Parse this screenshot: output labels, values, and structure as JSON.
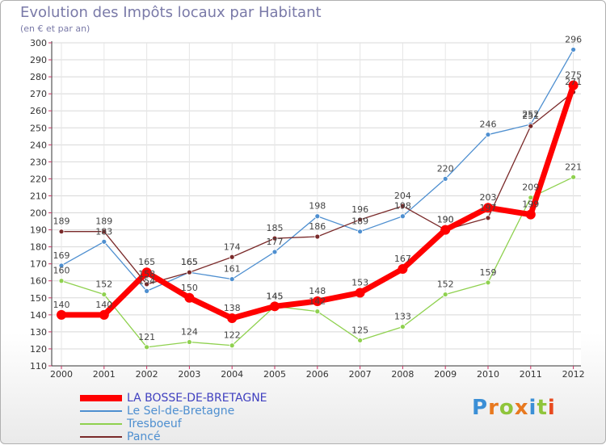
{
  "header": {
    "title": "Evolution des Impôts locaux par Habitant",
    "subtitle": "(en € et par an)"
  },
  "logo": {
    "text": "Proxiti"
  },
  "chart_data": {
    "type": "line",
    "title": "Evolution des Impôts locaux par Habitant",
    "ylabel": "(en € et par an)",
    "xlabel": "",
    "ylim": [
      110,
      300
    ],
    "y_ticks": [
      110,
      120,
      130,
      140,
      150,
      160,
      170,
      180,
      190,
      200,
      210,
      220,
      230,
      240,
      250,
      260,
      270,
      280,
      290,
      300
    ],
    "categories": [
      "2000",
      "2001",
      "2002",
      "2003",
      "2004",
      "2005",
      "2006",
      "2007",
      "2008",
      "2009",
      "2010",
      "2011",
      "2012"
    ],
    "grid": true,
    "legend_position": "bottom-left",
    "series": [
      {
        "name": "LA BOSSE-DE-BRETAGNE",
        "color": "#ff0000",
        "values": [
          140,
          140,
          165,
          150,
          138,
          145,
          148,
          153,
          167,
          190,
          203,
          199,
          275
        ]
      },
      {
        "name": "Le Sel-de-Bretagne",
        "color": "#4e8fd0",
        "values": [
          169,
          183,
          154,
          165,
          161,
          177,
          198,
          189,
          198,
          220,
          246,
          252,
          296
        ]
      },
      {
        "name": "Tresboeuf",
        "color": "#8fd14f",
        "values": [
          160,
          152,
          121,
          124,
          122,
          145,
          142,
          125,
          133,
          152,
          159,
          209,
          221
        ]
      },
      {
        "name": "Pancé",
        "color": "#7a2a2a",
        "values": [
          189,
          189,
          158,
          165,
          174,
          185,
          186,
          196,
          204,
          190,
          197,
          251,
          271
        ]
      }
    ],
    "data_labels": [
      [
        "140",
        "140",
        "165",
        "150",
        "138",
        "145",
        "148",
        "153",
        "167",
        "190",
        "203",
        "199",
        "275"
      ],
      [
        "169",
        "183",
        "154",
        "165",
        "161",
        "177",
        "198",
        "189",
        "198",
        "220",
        "246",
        "252",
        "296"
      ],
      [
        "160",
        "152",
        "121",
        "124",
        "122",
        "145",
        "142",
        "125",
        "133",
        "152",
        "159",
        "209",
        "221"
      ],
      [
        "189",
        "189",
        "158",
        "165",
        "174",
        "185",
        "186",
        "196",
        "204",
        "190",
        "197",
        "251",
        "271"
      ]
    ]
  }
}
